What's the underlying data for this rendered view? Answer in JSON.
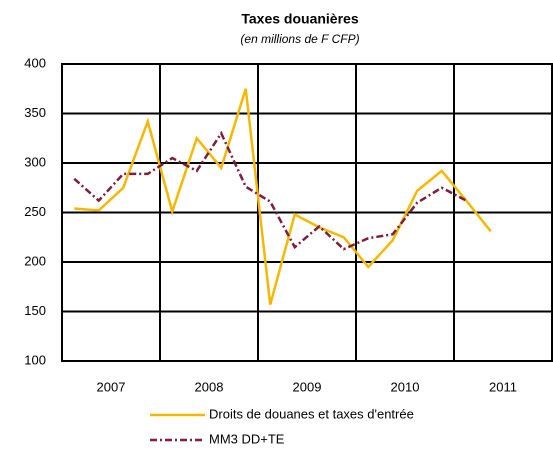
{
  "chart_data": {
    "type": "line",
    "title": "Taxes douanières",
    "subtitle": "(en millions de F CFP)",
    "categories": [
      null,
      null,
      null,
      null,
      null,
      null,
      null,
      null,
      null,
      null,
      null,
      null,
      null,
      null,
      null,
      null,
      null,
      null,
      null,
      null
    ],
    "x_groups": [
      "2007",
      "2008",
      "2009",
      "2010",
      "2011"
    ],
    "series": [
      {
        "name": "Droits de douanes et taxes d'entrée",
        "color": "#f5b800",
        "line_style": "solid",
        "values": [
          254,
          252,
          275,
          342,
          251,
          325,
          295,
          375,
          157,
          248,
          235,
          225,
          195,
          222,
          272,
          292,
          262,
          231,
          null,
          null
        ]
      },
      {
        "name": "MM3 DD+TE",
        "color": "#7b1f3a",
        "line_style": "dash-dot",
        "values": [
          284,
          262,
          289,
          289,
          305,
          292,
          330,
          276,
          261,
          215,
          236,
          213,
          224,
          228,
          260,
          275,
          262,
          null,
          null,
          null
        ]
      }
    ],
    "ylim": [
      100,
      400
    ],
    "yticks": [
      100,
      150,
      200,
      250,
      300,
      350,
      400
    ],
    "grid": true
  }
}
